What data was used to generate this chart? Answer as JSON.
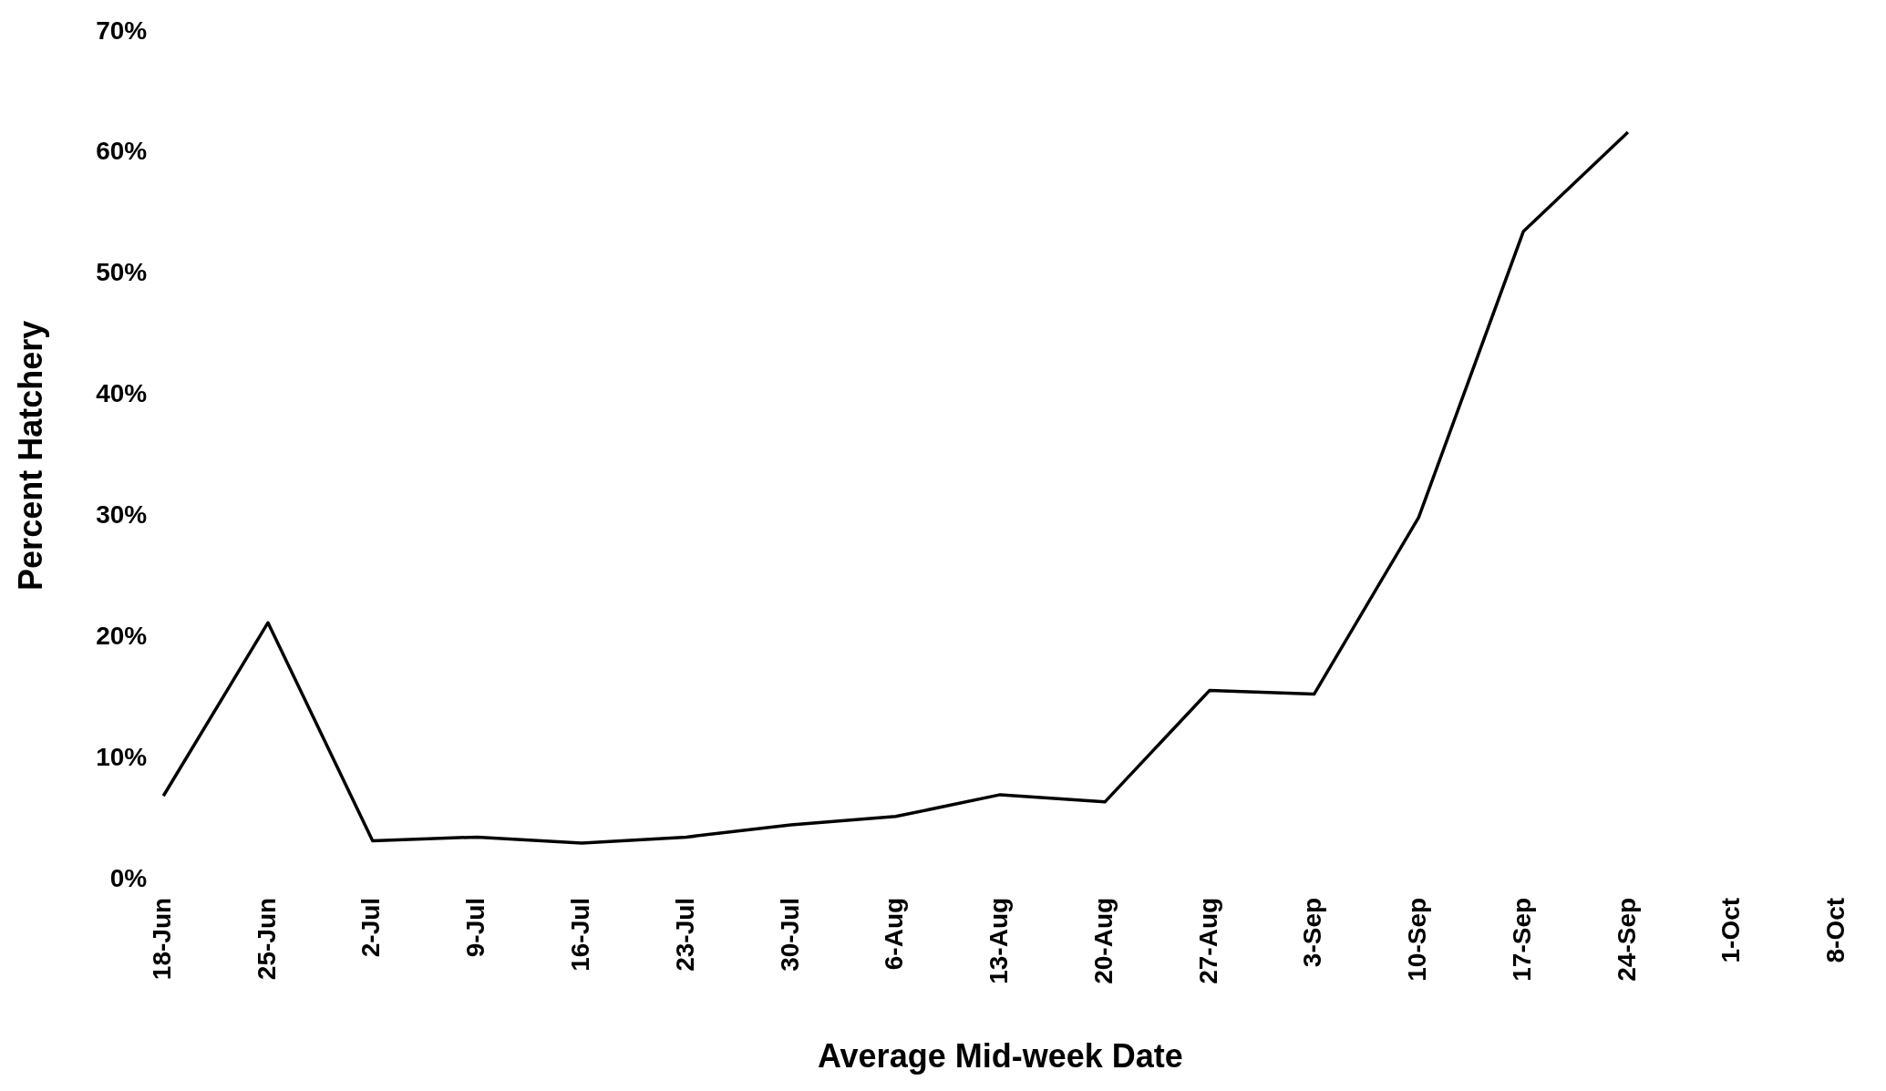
{
  "chart_data": {
    "type": "line",
    "xlabel": "Average Mid-week Date",
    "ylabel": "Percent Hatchery",
    "categories": [
      "18-Jun",
      "25-Jun",
      "2-Jul",
      "9-Jul",
      "16-Jul",
      "23-Jul",
      "30-Jul",
      "6-Aug",
      "13-Aug",
      "20-Aug",
      "27-Aug",
      "3-Sep",
      "10-Sep",
      "17-Sep",
      "24-Sep",
      "1-Oct",
      "8-Oct"
    ],
    "series": [
      {
        "color": "#000000",
        "values": [
          6.9,
          21.2,
          3.2,
          3.5,
          3.0,
          3.5,
          4.5,
          5.2,
          7.0,
          6.4,
          15.6,
          15.3,
          29.9,
          53.5,
          61.7,
          null,
          null
        ]
      }
    ],
    "ylim": [
      0,
      70
    ],
    "yticks": [
      {
        "value": 0,
        "label": "0%"
      },
      {
        "value": 10,
        "label": "10%"
      },
      {
        "value": 20,
        "label": "20%"
      },
      {
        "value": 30,
        "label": "30%"
      },
      {
        "value": 40,
        "label": "40%"
      },
      {
        "value": 50,
        "label": "50%"
      },
      {
        "value": 60,
        "label": "60%"
      },
      {
        "value": 70,
        "label": "70%"
      }
    ],
    "grid": false,
    "legend": false,
    "marker": "none",
    "line_style": "solid"
  }
}
